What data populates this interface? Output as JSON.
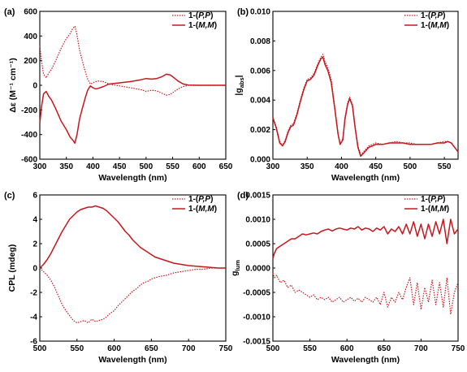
{
  "colors": {
    "series": "#c8161d",
    "axis": "#000000"
  },
  "chart_data": [
    {
      "label": "(a)",
      "type": "line",
      "xlabel": "Wavelength (nm)",
      "ylabel_html": "Δε (M⁻¹ cm⁻¹)",
      "xlim": [
        300,
        650
      ],
      "ylim": [
        -600,
        600
      ],
      "xticks": [
        300,
        350,
        400,
        450,
        500,
        550,
        600,
        650
      ],
      "yticks": [
        -600,
        -400,
        -200,
        0,
        200,
        400,
        600
      ],
      "ytick_labels": [
        "-600",
        "-400",
        "-200",
        "0",
        "200",
        "400",
        "600"
      ],
      "legend": "top-right",
      "series": [
        {
          "name": "1-(P,P)",
          "legend_main": "1-(",
          "legend_em": "P,P",
          "legend_end": ")",
          "style": "dotted",
          "x": [
            300,
            303,
            307,
            312,
            317,
            322,
            330,
            340,
            350,
            357,
            362,
            366,
            370,
            375,
            380,
            385,
            390,
            395,
            400,
            405,
            410,
            420,
            430,
            450,
            470,
            490,
            500,
            510,
            520,
            530,
            538,
            545,
            550,
            560,
            570,
            580,
            600,
            620,
            650
          ],
          "values": [
            320,
            200,
            90,
            60,
            100,
            130,
            200,
            300,
            380,
            420,
            460,
            480,
            410,
            280,
            200,
            120,
            50,
            10,
            20,
            30,
            35,
            30,
            10,
            -5,
            -20,
            -35,
            -50,
            -40,
            -45,
            -65,
            -80,
            -75,
            -60,
            -30,
            -10,
            0,
            0,
            0,
            0
          ]
        },
        {
          "name": "1-(M,M)",
          "legend_main": "1-(",
          "legend_em": "M,M",
          "legend_end": ")",
          "style": "solid",
          "x": [
            300,
            303,
            307,
            312,
            317,
            322,
            330,
            340,
            350,
            357,
            362,
            366,
            370,
            375,
            380,
            385,
            390,
            395,
            400,
            405,
            410,
            420,
            430,
            450,
            470,
            490,
            500,
            510,
            520,
            530,
            538,
            545,
            550,
            560,
            570,
            580,
            600,
            620,
            650
          ],
          "values": [
            -310,
            -180,
            -70,
            -50,
            -90,
            -120,
            -190,
            -290,
            -360,
            -420,
            -445,
            -470,
            -400,
            -270,
            -190,
            -110,
            -40,
            -5,
            -20,
            -30,
            -25,
            -10,
            10,
            20,
            30,
            45,
            55,
            50,
            55,
            70,
            90,
            85,
            70,
            35,
            10,
            2,
            0,
            0,
            0
          ]
        }
      ]
    },
    {
      "label": "(b)",
      "type": "line",
      "xlabel": "Wavelength (nm)",
      "ylabel_main": "|g",
      "ylabel_sub": "abs",
      "ylabel_end": "|",
      "xlim": [
        300,
        570
      ],
      "ylim": [
        0,
        0.01
      ],
      "xticks": [
        300,
        350,
        400,
        450,
        500,
        550
      ],
      "yticks": [
        0,
        0.002,
        0.004,
        0.006,
        0.008,
        0.01
      ],
      "ytick_labels": [
        "0.000",
        "0.002",
        "0.004",
        "0.006",
        "0.008",
        "0.010"
      ],
      "legend": "top-right",
      "series": [
        {
          "name": "1-(P,P)",
          "legend_main": "1-(",
          "legend_em": "P,P",
          "legend_end": ")",
          "style": "dotted",
          "x": [
            300,
            305,
            310,
            314,
            318,
            322,
            326,
            330,
            335,
            340,
            345,
            350,
            355,
            360,
            365,
            370,
            373,
            376,
            380,
            385,
            390,
            395,
            398,
            402,
            405,
            409,
            412,
            416,
            420,
            424,
            428,
            432,
            440,
            450,
            460,
            470,
            480,
            490,
            500,
            510,
            520,
            530,
            540,
            550,
            555,
            560,
            565,
            570
          ],
          "values": [
            0.0028,
            0.0022,
            0.0012,
            0.0009,
            0.0013,
            0.0019,
            0.0023,
            0.0024,
            0.0031,
            0.004,
            0.0048,
            0.0054,
            0.0055,
            0.0058,
            0.0064,
            0.0069,
            0.0071,
            0.0066,
            0.0062,
            0.0054,
            0.0036,
            0.0018,
            0.001,
            0.0014,
            0.0028,
            0.0038,
            0.0042,
            0.0037,
            0.0022,
            0.0009,
            0.0003,
            0.0005,
            0.0009,
            0.0011,
            0.001,
            0.0011,
            0.0012,
            0.0011,
            0.0011,
            0.001,
            0.001,
            0.001,
            0.0011,
            0.0012,
            0.0012,
            0.0011,
            0.0008,
            0.0005
          ]
        },
        {
          "name": "1-(M,M)",
          "legend_main": "1-(",
          "legend_em": "M,M",
          "legend_end": ")",
          "style": "solid",
          "x": [
            300,
            305,
            310,
            314,
            318,
            322,
            326,
            330,
            335,
            340,
            345,
            350,
            355,
            360,
            365,
            370,
            373,
            376,
            380,
            385,
            390,
            395,
            398,
            402,
            405,
            409,
            412,
            416,
            420,
            424,
            428,
            432,
            440,
            450,
            460,
            470,
            480,
            490,
            500,
            510,
            520,
            530,
            540,
            550,
            555,
            560,
            565,
            570
          ],
          "values": [
            0.0028,
            0.0021,
            0.0011,
            0.0009,
            0.0012,
            0.0018,
            0.0022,
            0.0023,
            0.003,
            0.0039,
            0.0047,
            0.0053,
            0.0054,
            0.0057,
            0.0063,
            0.0068,
            0.0069,
            0.0064,
            0.006,
            0.0052,
            0.0035,
            0.0017,
            0.001,
            0.0013,
            0.0027,
            0.0037,
            0.0041,
            0.0036,
            0.0021,
            0.0008,
            0.0002,
            0.0004,
            0.0008,
            0.001,
            0.001,
            0.0011,
            0.0011,
            0.0011,
            0.001,
            0.001,
            0.001,
            0.001,
            0.0011,
            0.0011,
            0.0012,
            0.0011,
            0.0008,
            0.0005
          ]
        }
      ]
    },
    {
      "label": "(c)",
      "type": "line",
      "xlabel": "Wavelength (nm)",
      "ylabel": "CPL (mdeg)",
      "xlim": [
        500,
        750
      ],
      "ylim": [
        -6,
        6
      ],
      "xticks": [
        500,
        550,
        600,
        650,
        700,
        750
      ],
      "yticks": [
        -6,
        -4,
        -2,
        0,
        2,
        4,
        6
      ],
      "ytick_labels": [
        "-6",
        "-4",
        "-2",
        "0",
        "2",
        "4",
        "6"
      ],
      "legend": "top-right",
      "series": [
        {
          "name": "1-(P,P)",
          "legend_main": "1-(",
          "legend_em": "P,P",
          "legend_end": ")",
          "style": "dotted",
          "x": [
            500,
            505,
            510,
            515,
            520,
            525,
            530,
            535,
            540,
            545,
            550,
            555,
            560,
            565,
            570,
            575,
            580,
            585,
            590,
            595,
            600,
            605,
            610,
            615,
            620,
            625,
            630,
            635,
            640,
            645,
            650,
            655,
            660,
            670,
            680,
            690,
            700,
            710,
            720,
            730,
            740,
            750
          ],
          "values": [
            0,
            -0.3,
            -0.6,
            -1.0,
            -1.6,
            -2.3,
            -3.0,
            -3.5,
            -3.9,
            -4.3,
            -4.5,
            -4.4,
            -4.3,
            -4.5,
            -4.2,
            -4.4,
            -4.3,
            -4.2,
            -4.0,
            -3.7,
            -3.5,
            -3.1,
            -2.8,
            -2.5,
            -2.2,
            -1.9,
            -1.7,
            -1.4,
            -1.2,
            -1.1,
            -0.9,
            -0.8,
            -0.7,
            -0.6,
            -0.4,
            -0.3,
            -0.2,
            -0.1,
            -0.1,
            0,
            0,
            0
          ]
        },
        {
          "name": "1-(M,M)",
          "legend_main": "1-(",
          "legend_em": "M,M",
          "legend_end": ")",
          "style": "solid",
          "x": [
            500,
            505,
            510,
            515,
            520,
            525,
            530,
            535,
            540,
            545,
            550,
            555,
            560,
            565,
            570,
            575,
            580,
            585,
            590,
            595,
            600,
            605,
            610,
            615,
            620,
            625,
            630,
            635,
            640,
            645,
            650,
            655,
            660,
            670,
            680,
            690,
            700,
            710,
            720,
            730,
            740,
            750
          ],
          "values": [
            0,
            0.3,
            0.7,
            1.2,
            1.8,
            2.4,
            3.0,
            3.5,
            4.0,
            4.3,
            4.6,
            4.8,
            4.9,
            5.0,
            5.0,
            5.1,
            5.0,
            4.9,
            4.7,
            4.4,
            4.1,
            3.8,
            3.4,
            3.0,
            2.7,
            2.3,
            2.0,
            1.7,
            1.5,
            1.3,
            1.1,
            0.9,
            0.8,
            0.6,
            0.4,
            0.3,
            0.2,
            0.15,
            0.1,
            0.05,
            0,
            0
          ]
        }
      ]
    },
    {
      "label": "(d)",
      "type": "line",
      "xlabel": "Wavelength (nm)",
      "ylabel_main": "g",
      "ylabel_sub": "lum",
      "ylabel_end": "",
      "xlim": [
        500,
        750
      ],
      "ylim": [
        -0.0015,
        0.0015
      ],
      "xticks": [
        500,
        550,
        600,
        650,
        700,
        750
      ],
      "yticks": [
        -0.0015,
        -0.001,
        -0.0005,
        0,
        0.0005,
        0.001,
        0.0015
      ],
      "ytick_labels": [
        "-0.0015",
        "-0.0010",
        "-0.0005",
        "0.0000",
        "0.0005",
        "0.0010",
        "0.0015"
      ],
      "legend": "top-right",
      "series": [
        {
          "name": "1-(P,P)",
          "legend_main": "1-(",
          "legend_em": "P,P",
          "legend_end": ")",
          "style": "dotted",
          "x": [
            500,
            502,
            505,
            510,
            515,
            520,
            525,
            530,
            535,
            540,
            545,
            550,
            555,
            560,
            565,
            570,
            575,
            580,
            585,
            590,
            595,
            600,
            605,
            610,
            615,
            620,
            625,
            630,
            635,
            640,
            645,
            650,
            655,
            660,
            665,
            670,
            675,
            680,
            685,
            690,
            695,
            700,
            705,
            710,
            715,
            720,
            725,
            730,
            735,
            740,
            745,
            750
          ],
          "values": [
            -0.0001,
            -0.0002,
            -0.00015,
            -0.0003,
            -0.00025,
            -0.0004,
            -0.00035,
            -0.0005,
            -0.00045,
            -0.0005,
            -0.00055,
            -0.0006,
            -0.00055,
            -0.00065,
            -0.0006,
            -0.00065,
            -0.0006,
            -0.0007,
            -0.00065,
            -0.0006,
            -0.0007,
            -0.00065,
            -0.0006,
            -0.00068,
            -0.00062,
            -0.0007,
            -0.0006,
            -0.00065,
            -0.0007,
            -0.0006,
            -0.00075,
            -0.0005,
            -0.0008,
            -0.0006,
            -0.0007,
            -0.0005,
            -0.00065,
            -0.0004,
            -0.0002,
            -0.00075,
            -0.0003,
            -0.00085,
            -0.0004,
            -0.0007,
            -0.00025,
            -0.00075,
            -0.0003,
            -0.0008,
            -0.0002,
            -0.00095,
            -0.0005,
            -0.0003
          ]
        },
        {
          "name": "1-(M,M)",
          "legend_main": "1-(",
          "legend_em": "M,M",
          "legend_end": ")",
          "style": "solid",
          "x": [
            500,
            502,
            505,
            510,
            515,
            520,
            525,
            530,
            535,
            540,
            545,
            550,
            555,
            560,
            565,
            570,
            575,
            580,
            585,
            590,
            595,
            600,
            605,
            610,
            615,
            620,
            625,
            630,
            635,
            640,
            645,
            650,
            655,
            660,
            665,
            670,
            675,
            680,
            685,
            690,
            695,
            700,
            705,
            710,
            715,
            720,
            725,
            730,
            735,
            740,
            745,
            750
          ],
          "values": [
            0.0002,
            0.0003,
            0.0004,
            0.00045,
            0.0005,
            0.00055,
            0.0006,
            0.0006,
            0.00065,
            0.0007,
            0.00068,
            0.0007,
            0.00072,
            0.0007,
            0.00075,
            0.00078,
            0.0008,
            0.00076,
            0.0008,
            0.00082,
            0.0008,
            0.00078,
            0.00082,
            0.0008,
            0.00085,
            0.00078,
            0.00082,
            0.0008,
            0.00075,
            0.00082,
            0.00078,
            0.00085,
            0.0007,
            0.0008,
            0.00075,
            0.00085,
            0.0007,
            0.0009,
            0.0007,
            0.00095,
            0.00065,
            0.0009,
            0.0006,
            0.0009,
            0.00065,
            0.00095,
            0.0007,
            0.001,
            0.0005,
            0.001,
            0.0007,
            0.0008
          ]
        }
      ]
    }
  ]
}
